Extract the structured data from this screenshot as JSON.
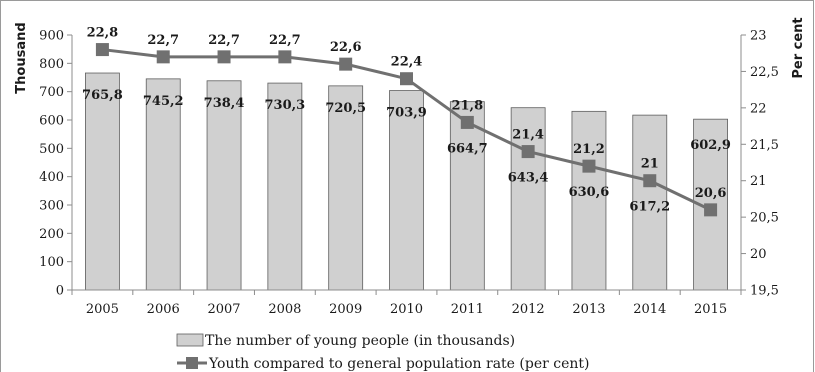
{
  "chart_data": {
    "type": "bar",
    "categories": [
      "2005",
      "2006",
      "2007",
      "2008",
      "2009",
      "2010",
      "2011",
      "2012",
      "2013",
      "2014",
      "2015"
    ],
    "series": [
      {
        "name": "The number of young people (in thousands)",
        "type": "bar",
        "axis": "left",
        "values": [
          765.8,
          745.2,
          738.4,
          730.3,
          720.5,
          703.9,
          664.7,
          643.4,
          630.6,
          617.2,
          602.9
        ],
        "labels": [
          "765,8",
          "745,2",
          "738,4",
          "730,3",
          "720,5",
          "703,9",
          "664,7",
          "643,4",
          "630,6",
          "617,2",
          "602,9"
        ],
        "color": "#d0d0d0"
      },
      {
        "name": "Youth compared to general population rate (per cent)",
        "type": "line",
        "axis": "right",
        "values": [
          22.8,
          22.7,
          22.7,
          22.7,
          22.6,
          22.4,
          21.8,
          21.4,
          21.2,
          21.0,
          20.6
        ],
        "labels": [
          "22,8",
          "22,7",
          "22,7",
          "22,7",
          "22,6",
          "22,4",
          "21,8",
          "21,4",
          "21,2",
          "21",
          "20,6"
        ],
        "color": "#707070"
      }
    ],
    "ylabel": "Thousand",
    "y2label": "Per cent",
    "ylim": [
      0,
      900
    ],
    "y2lim": [
      19.5,
      23
    ],
    "yticks": [
      0,
      100,
      200,
      300,
      400,
      500,
      600,
      700,
      800,
      900
    ],
    "yticklabels": [
      "0",
      "100",
      "200",
      "300",
      "400",
      "500",
      "600",
      "700",
      "800",
      "900"
    ],
    "y2ticks": [
      19.5,
      20,
      20.5,
      21,
      21.5,
      22,
      22.5,
      23
    ],
    "y2ticklabels": [
      "19,5",
      "20",
      "20,5",
      "21",
      "21,5",
      "22",
      "22,5",
      "23"
    ],
    "grid": false,
    "legend_position": "bottom"
  }
}
